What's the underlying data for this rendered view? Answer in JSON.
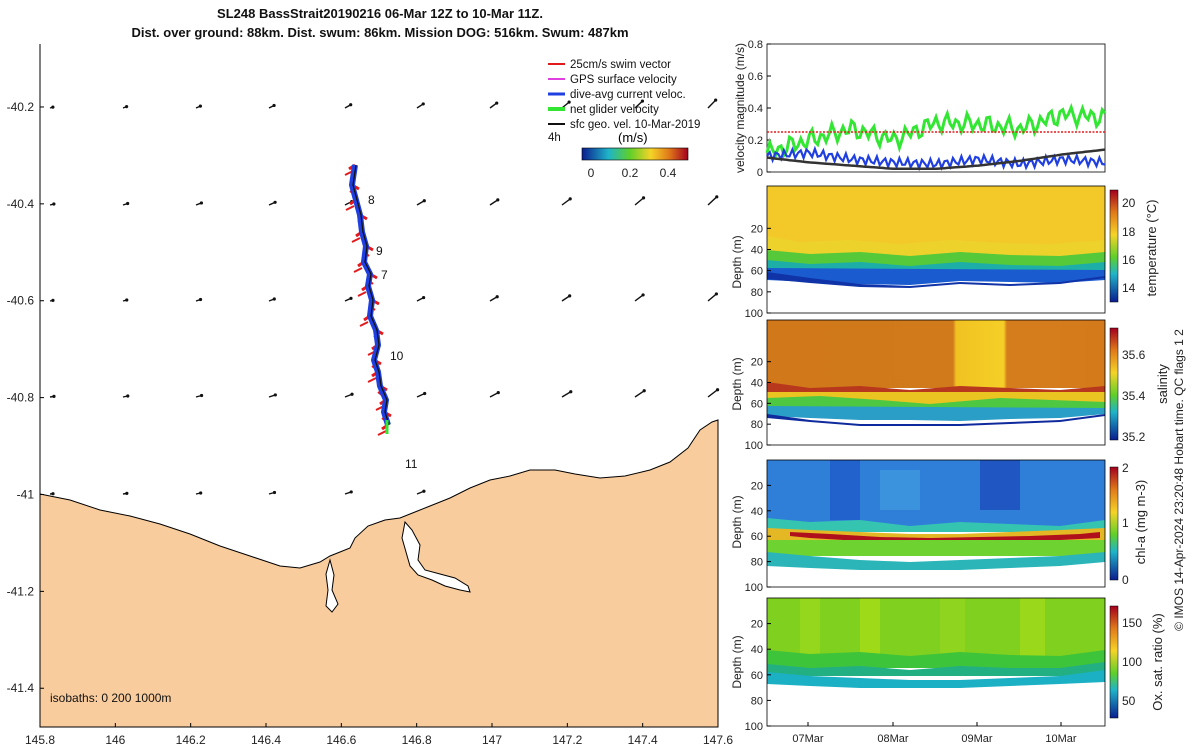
{
  "header": {
    "line1": "SL248 BassStrait20190216 06-Mar 12Z to 10-Mar 11Z.",
    "line2": "Dist. over ground: 88km. Dist. swum: 86km. Mission DOG: 516km. Swum: 487km"
  },
  "credit": "© IMOS 14-Apr-2024 23:20:48 Hobart time. QC flags 1  2",
  "map": {
    "x_ticks": [
      "145.8",
      "146",
      "146.2",
      "146.4",
      "146.6",
      "146.8",
      "147",
      "147.2",
      "147.4",
      "147.6"
    ],
    "y_ticks": [
      "-40.2",
      "-40.4",
      "-40.6",
      "-40.8",
      "-41",
      "-41.2",
      "-41.4"
    ],
    "xlim": [
      145.8,
      147.6
    ],
    "ylim": [
      -41.48,
      -40.07
    ],
    "legend": [
      {
        "label": "25cm/s swim vector",
        "color": "#e31a1c"
      },
      {
        "label": "GPS surface velocity",
        "color": "#e040e0"
      },
      {
        "label": "dive-avg current veloc.",
        "color": "#1f3fe0"
      },
      {
        "label": "net glider velocity",
        "color": "#33e633"
      },
      {
        "label": "sfc geo. vel. 10-Mar-2019",
        "color": "#111111"
      }
    ],
    "colorbar": {
      "corner_label": "4h",
      "title": "(m/s)",
      "ticks": [
        "0",
        "0.2",
        "0.4"
      ]
    },
    "day_labels": [
      "8",
      "9",
      "7",
      "10",
      "11"
    ],
    "isobaths_note": "isobaths: 0   200  1000m",
    "land_color": "#f9cc9e"
  },
  "panels": {
    "velocity": {
      "ylabel": "velocity magnitude (m/s)",
      "y_ticks": [
        "0",
        "0.2",
        "0.4",
        "0.6",
        "0.8"
      ],
      "ylim": [
        0,
        0.8
      ]
    },
    "temperature": {
      "ylabel": "Depth (m)",
      "cbar_label": "temperature (°C)",
      "cbar_ticks": [
        "20",
        "18",
        "16",
        "14"
      ]
    },
    "salinity": {
      "ylabel": "Depth (m)",
      "cbar_label": "salinity",
      "cbar_ticks": [
        "35.6",
        "35.4",
        "35.2"
      ]
    },
    "chla": {
      "ylabel": "Depth (m)",
      "cbar_label": "chl-a (mg m-3)",
      "cbar_ticks": [
        "2",
        "1",
        "0"
      ]
    },
    "oxygen": {
      "ylabel": "Depth (m)",
      "cbar_label": "Ox. sat. ratio (%)",
      "cbar_ticks": [
        "150",
        "100",
        "50"
      ]
    },
    "depth_ticks": [
      "20",
      "40",
      "60",
      "80",
      "100"
    ],
    "depth_ticks_top": [
      "",
      "20",
      "40",
      "60",
      "80",
      "100"
    ],
    "time_ticks": [
      "07Mar",
      "08Mar",
      "09Mar",
      "10Mar"
    ]
  },
  "chart_data": [
    {
      "type": "line",
      "title": "velocity magnitude (m/s)",
      "ylabel": "velocity magnitude (m/s)",
      "ylim": [
        0,
        0.8
      ],
      "x": [
        "06Mar 12Z",
        "07Mar 00Z",
        "07Mar 12Z",
        "08Mar 00Z",
        "08Mar 12Z",
        "09Mar 00Z",
        "09Mar 12Z",
        "10Mar 00Z",
        "10Mar 11Z"
      ],
      "series": [
        {
          "name": "net glider velocity",
          "color": "#33e633",
          "values": [
            0.12,
            0.2,
            0.27,
            0.2,
            0.31,
            0.3,
            0.27,
            0.36,
            0.34
          ]
        },
        {
          "name": "dive-avg current veloc.",
          "color": "#1f3fe0",
          "values": [
            0.1,
            0.12,
            0.08,
            0.06,
            0.05,
            0.08,
            0.05,
            0.08,
            0.06
          ]
        },
        {
          "name": "sfc geo. vel. 10-Mar-2019",
          "color": "#333333",
          "values": [
            0.09,
            0.06,
            0.04,
            0.02,
            0.02,
            0.04,
            0.07,
            0.11,
            0.14
          ]
        },
        {
          "name": "25cm/s swim vector",
          "color": "#e31a1c",
          "values": [
            0.25,
            0.25,
            0.25,
            0.25,
            0.25,
            0.25,
            0.25,
            0.25,
            0.25
          ]
        }
      ]
    }
  ]
}
